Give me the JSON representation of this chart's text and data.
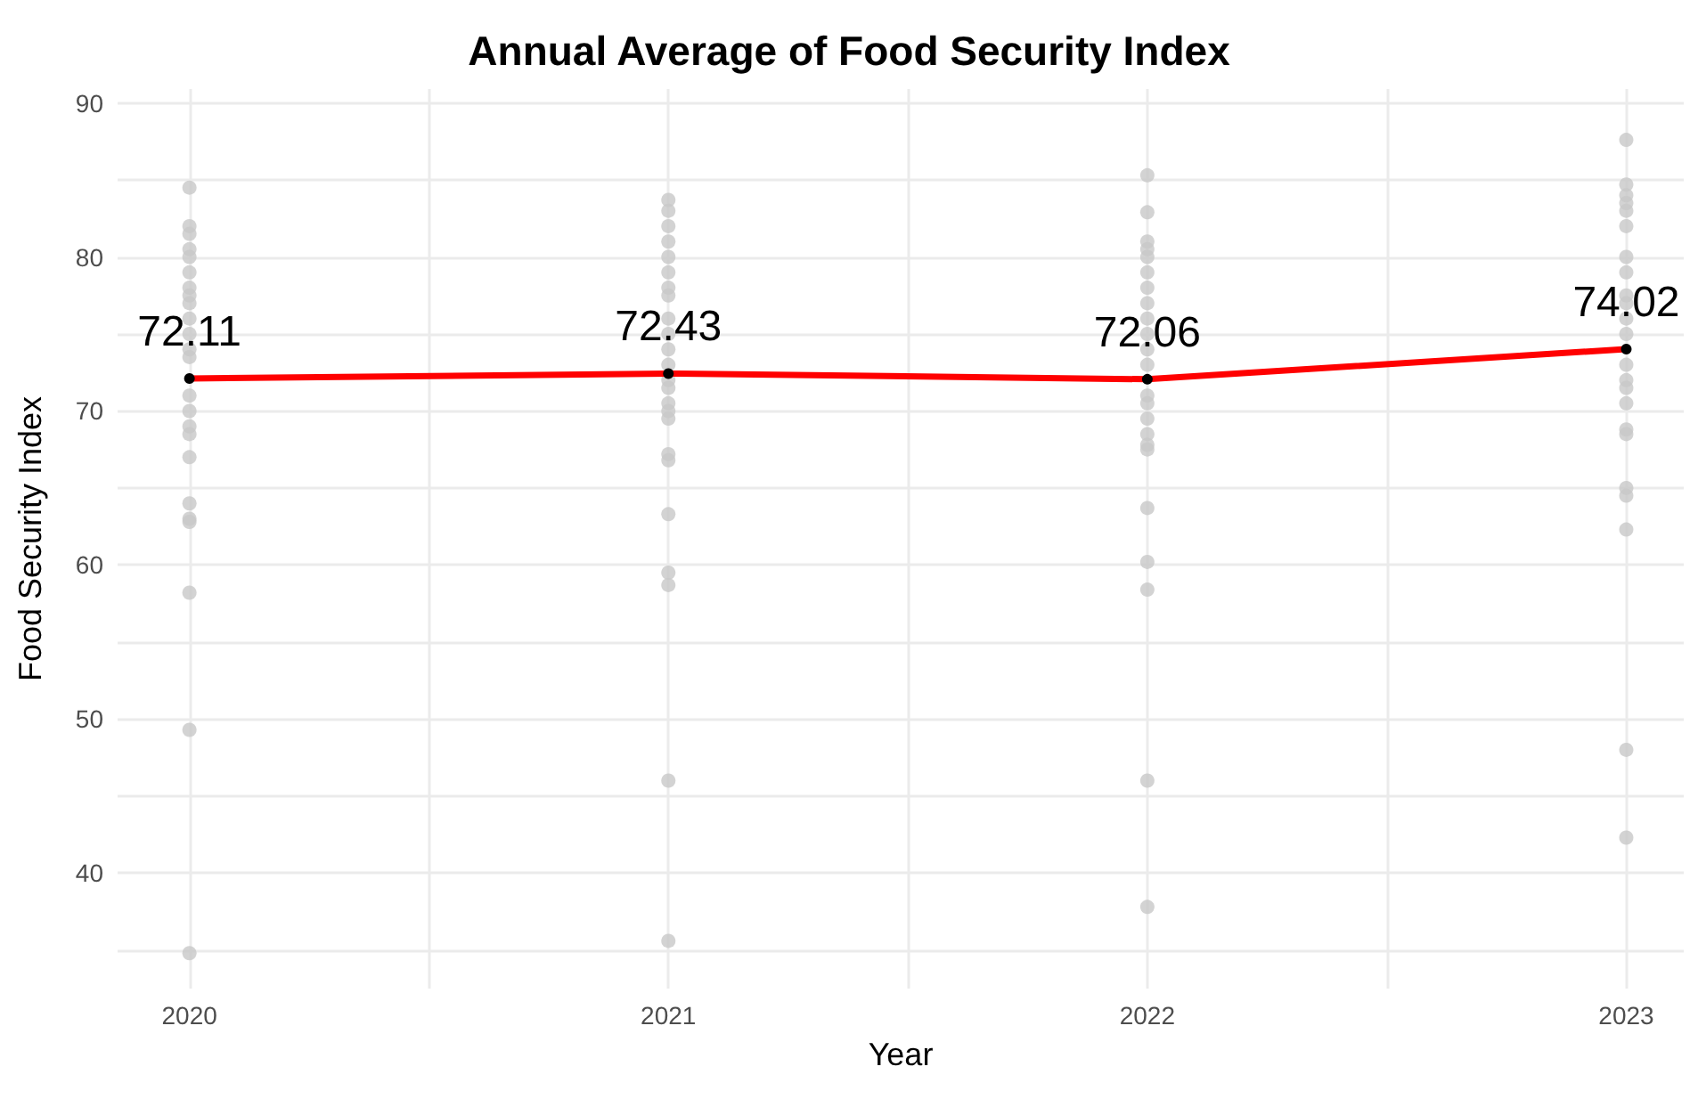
{
  "chart_data": {
    "type": "scatter",
    "title": "Annual Average of Food Security Index",
    "xlabel": "Year",
    "ylabel": "Food Security Index",
    "xlim": [
      2019.85,
      2023.12
    ],
    "xticks": [
      2020,
      {
        "value": 2020.5,
        "label": null
      },
      2021,
      {
        "value": 2021.5,
        "label": null
      },
      2022,
      {
        "value": 2022.5,
        "label": null
      },
      2023
    ],
    "ylim": [
      32.5,
      90.9
    ],
    "yticks": [
      {
        "value": 35,
        "label": null
      },
      40,
      {
        "value": 45,
        "label": null
      },
      50,
      {
        "value": 55,
        "label": null
      },
      60,
      {
        "value": 65,
        "label": null
      },
      70,
      {
        "value": 75,
        "label": null
      },
      80,
      {
        "value": 85,
        "label": null
      },
      90
    ],
    "grid": true,
    "series": [
      {
        "color": "#c8c8c8",
        "marker": "circle",
        "x": [
          2020,
          2020,
          2020,
          2020,
          2020,
          2020,
          2020,
          2020,
          2020,
          2020,
          2020,
          2020,
          2020,
          2020,
          2020,
          2020,
          2020,
          2020,
          2020,
          2020,
          2020,
          2020,
          2020,
          2020,
          2021,
          2021,
          2021,
          2021,
          2021,
          2021,
          2021,
          2021,
          2021,
          2021,
          2021,
          2021,
          2021,
          2021,
          2021,
          2021,
          2021,
          2021,
          2021,
          2021,
          2021,
          2021,
          2021,
          2021,
          2022,
          2022,
          2022,
          2022,
          2022,
          2022,
          2022,
          2022,
          2022,
          2022,
          2022,
          2022,
          2022,
          2022,
          2022,
          2022,
          2022,
          2022,
          2022,
          2022,
          2022,
          2022,
          2022,
          2023,
          2023,
          2023,
          2023,
          2023,
          2023,
          2023,
          2023,
          2023,
          2023,
          2023,
          2023,
          2023,
          2023,
          2023,
          2023,
          2023,
          2023,
          2023,
          2023,
          2023,
          2023,
          2023
        ],
        "values": [
          84.5,
          82,
          81.5,
          80.5,
          80,
          79,
          78,
          77.5,
          77,
          76,
          75,
          74,
          73.5,
          71,
          70,
          69,
          68.5,
          67,
          64,
          63,
          62.8,
          58.2,
          49.3,
          34.8,
          83.7,
          83,
          82,
          81,
          80,
          79,
          78,
          77.5,
          76,
          75,
          74,
          73,
          72,
          71.5,
          70.5,
          70,
          69.5,
          67.2,
          66.8,
          63.3,
          59.5,
          58.7,
          46,
          35.6,
          85.3,
          82.9,
          81,
          80.5,
          80,
          79,
          78,
          77,
          76,
          75,
          74,
          73,
          71,
          70.5,
          69.5,
          68.5,
          67.8,
          67.5,
          63.7,
          60.2,
          58.4,
          46,
          37.8,
          87.6,
          84.7,
          84,
          83.5,
          83,
          82,
          80,
          79,
          77.5,
          77,
          76,
          75,
          73,
          72,
          71.5,
          70.5,
          68.8,
          68.5,
          65,
          64.5,
          62.3,
          48,
          42.3
        ]
      },
      {
        "type": "line",
        "color": "#ff0000",
        "marker": "none",
        "line_style": "solid",
        "x": [
          2020,
          2021,
          2022,
          2023
        ],
        "values": [
          72.11,
          72.43,
          72.06,
          74.02
        ],
        "value_labels": [
          "72.11",
          "72.43",
          "72.06",
          "74.02"
        ]
      },
      {
        "color": "#000000",
        "marker": "circle",
        "x": [
          2020,
          2021,
          2022,
          2023
        ],
        "values": [
          72.11,
          72.43,
          72.06,
          74.02
        ]
      }
    ]
  }
}
